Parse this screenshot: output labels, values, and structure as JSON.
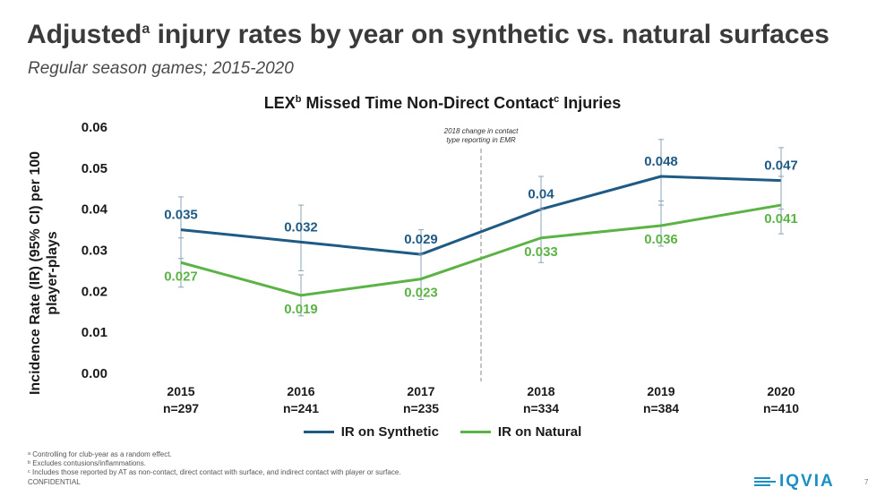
{
  "header": {
    "title_pre": "Adjusted",
    "title_sup": "a",
    "title_post": " injury rates by year on synthetic vs. natural surfaces",
    "subtitle": "Regular season games; 2015-2020"
  },
  "chart_data": {
    "type": "line",
    "title_pre": "LEX",
    "title_sup1": "b",
    "title_mid": " Missed Time Non-Direct Contact",
    "title_sup2": "c",
    "title_post": " Injuries",
    "ylabel_line1": "Incidence Rate (IR) (95% CI) per 100",
    "ylabel_line2": "player-plays",
    "ylim": [
      0,
      0.06
    ],
    "yticks": [
      "0.00",
      "0.01",
      "0.02",
      "0.03",
      "0.04",
      "0.05",
      "0.06"
    ],
    "categories": [
      "2015",
      "2016",
      "2017",
      "2018",
      "2019",
      "2020"
    ],
    "category_n": [
      "n=297",
      "n=241",
      "n=235",
      "n=334",
      "n=384",
      "n=410"
    ],
    "series": [
      {
        "name": "IR on Synthetic",
        "color": "#1f5a85",
        "values": [
          0.035,
          0.032,
          0.029,
          0.04,
          0.048,
          0.047
        ],
        "labels": [
          "0.035",
          "0.032",
          "0.029",
          "0.04",
          "0.048",
          "0.047"
        ],
        "ci_low": [
          0.028,
          0.025,
          0.023,
          0.033,
          0.041,
          0.04
        ],
        "ci_high": [
          0.043,
          0.041,
          0.035,
          0.048,
          0.057,
          0.055
        ]
      },
      {
        "name": "IR on Natural",
        "color": "#5bb345",
        "values": [
          0.027,
          0.019,
          0.023,
          0.033,
          0.036,
          0.041
        ],
        "labels": [
          "0.027",
          "0.019",
          "0.023",
          "0.033",
          "0.036",
          "0.041"
        ],
        "ci_low": [
          0.021,
          0.014,
          0.018,
          0.027,
          0.031,
          0.034
        ],
        "ci_high": [
          0.033,
          0.024,
          0.029,
          0.04,
          0.042,
          0.048
        ]
      }
    ],
    "annotation": {
      "line1": "2018 change in contact",
      "line2": "type reporting in EMR",
      "between": [
        "2017",
        "2018"
      ]
    }
  },
  "footnotes": {
    "a": "ᵃ Controlling for club-year as a random effect.",
    "b": "ᵇ Excludes contusions/inflammations.",
    "c": "ᶜ Includes those reported by AT as non-contact, direct contact with surface, and indirect contact with player or surface."
  },
  "confidential": "CONFIDENTIAL",
  "logo": {
    "text": "IQVIA",
    "color": "#1a8fc4"
  },
  "page_number": "7"
}
